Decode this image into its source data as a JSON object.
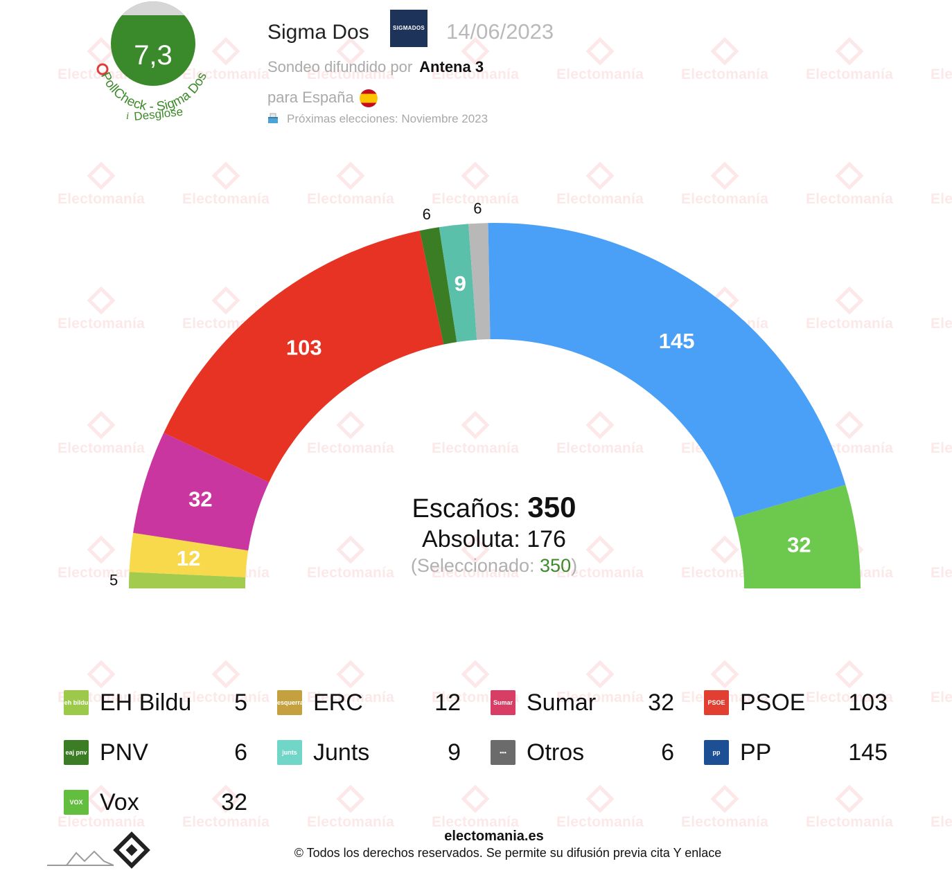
{
  "header": {
    "score": "7,3",
    "score_arc_text": "PollCheck - Sigma Dos",
    "breakdown_link": "Desglose",
    "info_icon": "i",
    "pollster": "Sigma Dos",
    "pollster_logo_text": "SIGMADOS",
    "date": "14/06/2023",
    "broadcast_prefix": "Sondeo difundido por",
    "broadcaster": "Antena 3",
    "scope": "para España",
    "next_election": "Próximas elecciones: Noviembre 2023",
    "icons": {
      "flag": "spain-flag-icon",
      "ballot": "ballot-box-icon"
    }
  },
  "watermark": {
    "text": "Electomanía"
  },
  "center": {
    "seats_label": "Escaños:",
    "seats_total": "350",
    "majority_label": "Absoluta:",
    "majority_value": "176",
    "selected_prefix": "(Seleccionado:",
    "selected_value": "350",
    "selected_suffix": ")"
  },
  "chart_data": {
    "type": "hemicycle",
    "total": 350,
    "majority": 176,
    "series": [
      {
        "name": "EH Bildu",
        "value": 5,
        "color": "#a3cc4e",
        "label_outside": true
      },
      {
        "name": "ERC",
        "value": 12,
        "color": "#f8d94b",
        "label_outside": false
      },
      {
        "name": "Sumar",
        "value": 32,
        "color": "#c9369f",
        "label_outside": false
      },
      {
        "name": "PSOE",
        "value": 103,
        "color": "#e63323",
        "label_outside": false
      },
      {
        "name": "PNV",
        "value": 6,
        "color": "#3b7d25",
        "label_outside": true
      },
      {
        "name": "Junts",
        "value": 9,
        "color": "#5bc0a9",
        "label_outside": false
      },
      {
        "name": "Otros",
        "value": 6,
        "color": "#b8b8b8",
        "label_outside": true
      },
      {
        "name": "PP",
        "value": 145,
        "color": "#4a9ff7",
        "label_outside": false
      },
      {
        "name": "Vox",
        "value": 32,
        "color": "#6cc94d",
        "label_outside": false
      }
    ]
  },
  "legend": [
    {
      "name": "EH Bildu",
      "seats": "5",
      "logo_text": "eh bildu",
      "logo_color": "#9cc94a"
    },
    {
      "name": "ERC",
      "seats": "12",
      "logo_text": "esquerra",
      "logo_color": "#c4a03f"
    },
    {
      "name": "Sumar",
      "seats": "32",
      "logo_text": "Sumar",
      "logo_color": "#d73d65"
    },
    {
      "name": "PSOE",
      "seats": "103",
      "logo_text": "PSOE",
      "logo_color": "#e13f31"
    },
    {
      "name": "PNV",
      "seats": "6",
      "logo_text": "eaj pnv",
      "logo_color": "#3b7d25"
    },
    {
      "name": "Junts",
      "seats": "9",
      "logo_text": "junts",
      "logo_color": "#6fd6c8"
    },
    {
      "name": "Otros",
      "seats": "6",
      "logo_text": "•••",
      "logo_color": "#6b6b6b"
    },
    {
      "name": "PP",
      "seats": "145",
      "logo_text": "pp",
      "logo_color": "#1d4f95"
    },
    {
      "name": "Vox",
      "seats": "32",
      "logo_text": "VOX",
      "logo_color": "#63be3f"
    }
  ],
  "footer": {
    "site": "electomania.es",
    "copyright": "© Todos los derechos reservados. Se permite su difusión previa cita Y enlace"
  }
}
